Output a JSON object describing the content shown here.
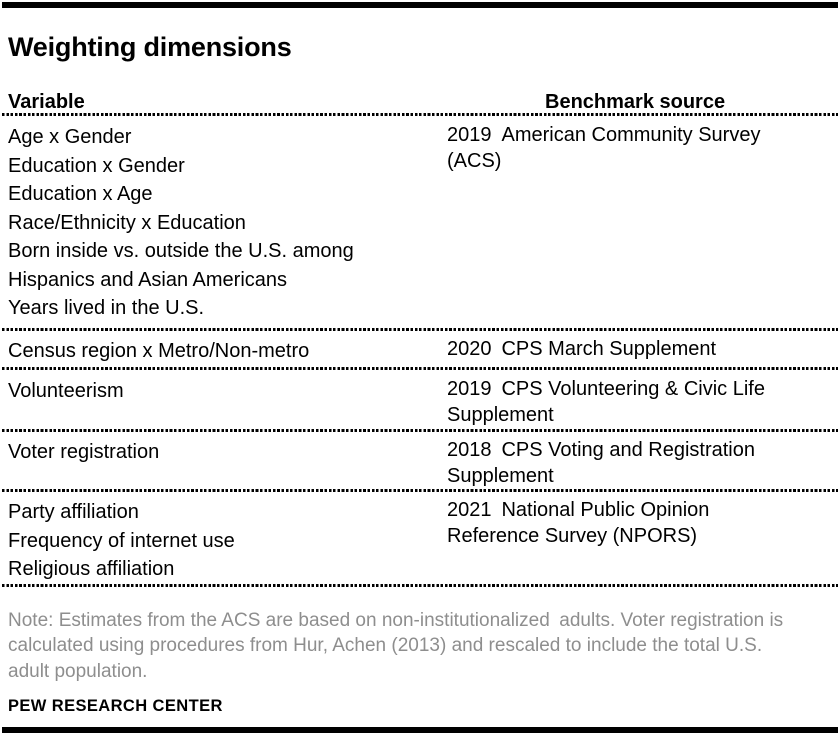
{
  "title": "Weighting dimensions",
  "colors": {
    "text": "#000000",
    "note_gray": "#8e8e8e",
    "rule": "#000000"
  },
  "table": {
    "headers": {
      "variable": "Variable",
      "benchmark": "Benchmark source"
    },
    "rows": [
      {
        "variables": [
          "Age x Gender",
          "Education x Gender",
          "Education x Age",
          "Race/Ethnicity x Education",
          "Born inside vs. outside the U.S. among\nHispanics and Asian Americans",
          "Years lived in the U.S."
        ],
        "benchmark": "2019 American Community Survey\n(ACS)"
      },
      {
        "variables": [
          "Census region x Metro/Non-metro"
        ],
        "benchmark": "2020 CPS March Supplement"
      },
      {
        "variables": [
          "Volunteerism"
        ],
        "benchmark": "2019 CPS Volunteering & Civic Life\nSupplement"
      },
      {
        "variables": [
          "Voter registration"
        ],
        "benchmark": "2018 CPS Voting and Registration\nSupplement"
      },
      {
        "variables": [
          "Party affiliation",
          "Frequency of internet use",
          "Religious affiliation"
        ],
        "benchmark": "2021 National Public Opinion\nReference Survey (NPORS)"
      }
    ]
  },
  "note": "Note: Estimates from the ACS are based on non-institutionalized adults. Voter registration is\ncalculated using procedures from Hur, Achen (2013) and rescaled to include the total U.S.\nadult population.",
  "source": "PEW RESEARCH CENTER"
}
